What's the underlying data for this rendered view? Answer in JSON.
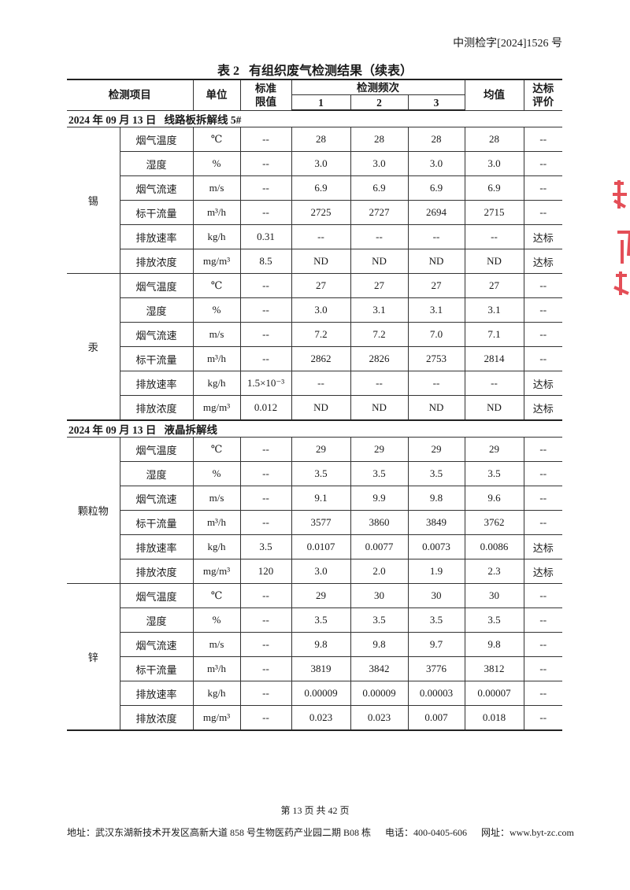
{
  "header": {
    "doc_number": "中测检字[2024]1526 号"
  },
  "table": {
    "title": "表 2   有组织废气检测结果（续表）",
    "columns": {
      "item": "检测项目",
      "unit": "单位",
      "limit": "标准\n限值",
      "freq": "检测频次",
      "r1": "1",
      "r2": "2",
      "r3": "3",
      "mean": "均值",
      "eval": "达标\n评价"
    },
    "sections": [
      {
        "label": "2024 年 09 月 13 日   线路板拆解线 5#",
        "groups": [
          {
            "name": "锡",
            "rows": [
              [
                "烟气温度",
                "℃",
                "--",
                "28",
                "28",
                "28",
                "28",
                "--"
              ],
              [
                "湿度",
                "%",
                "--",
                "3.0",
                "3.0",
                "3.0",
                "3.0",
                "--"
              ],
              [
                "烟气流速",
                "m/s",
                "--",
                "6.9",
                "6.9",
                "6.9",
                "6.9",
                "--"
              ],
              [
                "标干流量",
                "m³/h",
                "--",
                "2725",
                "2727",
                "2694",
                "2715",
                "--"
              ],
              [
                "排放速率",
                "kg/h",
                "0.31",
                "--",
                "--",
                "--",
                "--",
                "达标"
              ],
              [
                "排放浓度",
                "mg/m³",
                "8.5",
                "ND",
                "ND",
                "ND",
                "ND",
                "达标"
              ]
            ]
          },
          {
            "name": "汞",
            "rows": [
              [
                "烟气温度",
                "℃",
                "--",
                "27",
                "27",
                "27",
                "27",
                "--"
              ],
              [
                "湿度",
                "%",
                "--",
                "3.0",
                "3.1",
                "3.1",
                "3.1",
                "--"
              ],
              [
                "烟气流速",
                "m/s",
                "--",
                "7.2",
                "7.2",
                "7.0",
                "7.1",
                "--"
              ],
              [
                "标干流量",
                "m³/h",
                "--",
                "2862",
                "2826",
                "2753",
                "2814",
                "--"
              ],
              [
                "排放速率",
                "kg/h",
                "1.5×10⁻³",
                "--",
                "--",
                "--",
                "--",
                "达标"
              ],
              [
                "排放浓度",
                "mg/m³",
                "0.012",
                "ND",
                "ND",
                "ND",
                "ND",
                "达标"
              ]
            ]
          }
        ]
      },
      {
        "label": "2024 年 09 月 13 日   液晶拆解线",
        "groups": [
          {
            "name": "颗粒物",
            "rows": [
              [
                "烟气温度",
                "℃",
                "--",
                "29",
                "29",
                "29",
                "29",
                "--"
              ],
              [
                "湿度",
                "%",
                "--",
                "3.5",
                "3.5",
                "3.5",
                "3.5",
                "--"
              ],
              [
                "烟气流速",
                "m/s",
                "--",
                "9.1",
                "9.9",
                "9.8",
                "9.6",
                "--"
              ],
              [
                "标干流量",
                "m³/h",
                "--",
                "3577",
                "3860",
                "3849",
                "3762",
                "--"
              ],
              [
                "排放速率",
                "kg/h",
                "3.5",
                "0.0107",
                "0.0077",
                "0.0073",
                "0.0086",
                "达标"
              ],
              [
                "排放浓度",
                "mg/m³",
                "120",
                "3.0",
                "2.0",
                "1.9",
                "2.3",
                "达标"
              ]
            ]
          },
          {
            "name": "锌",
            "rows": [
              [
                "烟气温度",
                "℃",
                "--",
                "29",
                "30",
                "30",
                "30",
                "--"
              ],
              [
                "湿度",
                "%",
                "--",
                "3.5",
                "3.5",
                "3.5",
                "3.5",
                "--"
              ],
              [
                "烟气流速",
                "m/s",
                "--",
                "9.8",
                "9.8",
                "9.7",
                "9.8",
                "--"
              ],
              [
                "标干流量",
                "m³/h",
                "--",
                "3819",
                "3842",
                "3776",
                "3812",
                "--"
              ],
              [
                "排放速率",
                "kg/h",
                "--",
                "0.00009",
                "0.00009",
                "0.00003",
                "0.00007",
                "--"
              ],
              [
                "排放浓度",
                "mg/m³",
                "--",
                "0.023",
                "0.023",
                "0.007",
                "0.018",
                "--"
              ]
            ]
          }
        ]
      }
    ]
  },
  "footer": {
    "page": "第 13 页 共 42 页",
    "address": "地址：武汉东湖新技术开发区高新大道 858 号生物医药产业园二期 B08 栋      电话：400-0405-606      网址：www.byt-zc.com"
  },
  "colors": {
    "stamp": "#e0303a",
    "rule": "#222222"
  }
}
